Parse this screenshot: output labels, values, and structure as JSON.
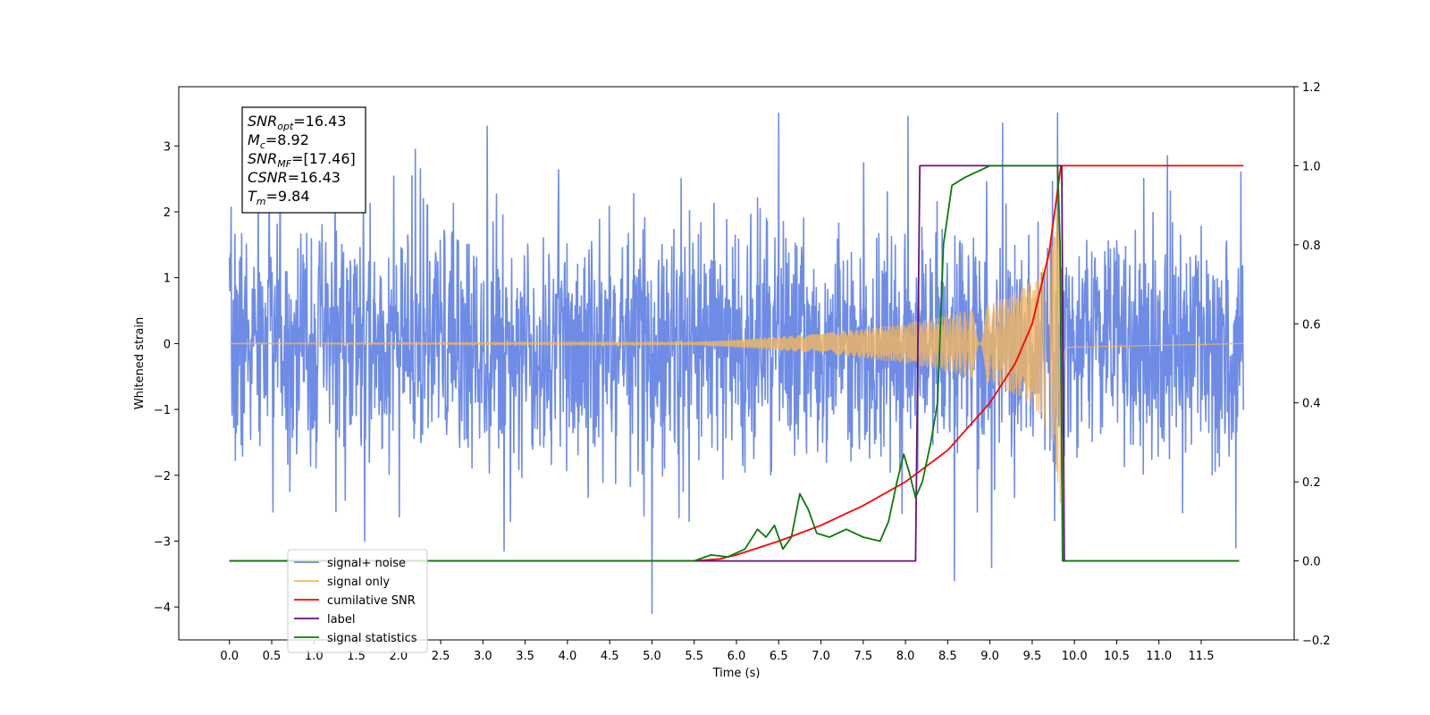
{
  "chart_data": {
    "type": "line",
    "title": "",
    "xlabel": "Time (s)",
    "ylabel": "Whitened strain",
    "y2label": "",
    "xlim": [
      -0.6,
      12.6
    ],
    "ylim": [
      -4.5,
      3.9
    ],
    "y2lim": [
      -0.2,
      1.2
    ],
    "xticks": [
      "0.0",
      "0.5",
      "1.0",
      "1.5",
      "2.0",
      "2.5",
      "3.0",
      "3.5",
      "4.0",
      "4.5",
      "5.0",
      "5.5",
      "6.0",
      "6.5",
      "7.0",
      "7.5",
      "8.0",
      "8.5",
      "9.0",
      "9.5",
      "10.0",
      "10.5",
      "11.0",
      "11.5"
    ],
    "yticks": [
      -4,
      -3,
      -2,
      -1,
      0,
      1,
      2,
      3
    ],
    "y2ticks": [
      "-0.2",
      "0.0",
      "0.2",
      "0.4",
      "0.6",
      "0.8",
      "1.0",
      "1.2"
    ],
    "annotation": {
      "lines": [
        {
          "sym": "SNR",
          "sub": "opt",
          "val": "=16.43"
        },
        {
          "sym": "M",
          "sub": "c",
          "val": "=8.92"
        },
        {
          "sym": "SNR",
          "sub": "MF",
          "val": "=[17.46]"
        },
        {
          "sym": "CSNR",
          "sub": "",
          "val": "=16.43"
        },
        {
          "sym": "T",
          "sub": "m",
          "val": "=9.84"
        }
      ]
    },
    "series": [
      {
        "name": "signal+ noise",
        "axis": "left",
        "color": "#6e8ce6",
        "style": "noise",
        "x_range": [
          0.0,
          12.0
        ],
        "sigma": 0.9,
        "seed": 7,
        "extreme_points": [
          [
            1.25,
            2.95
          ],
          [
            1.6,
            -3.0
          ],
          [
            2.2,
            2.95
          ],
          [
            3.05,
            3.3
          ],
          [
            3.25,
            -3.15
          ],
          [
            5.0,
            -4.1
          ],
          [
            6.5,
            3.5
          ],
          [
            8.03,
            3.45
          ],
          [
            8.58,
            -3.6
          ],
          [
            9.02,
            -3.4
          ],
          [
            9.15,
            3.35
          ],
          [
            9.8,
            3.5
          ],
          [
            11.1,
            2.85
          ],
          [
            11.91,
            -3.1
          ]
        ]
      },
      {
        "name": "signal only",
        "axis": "left",
        "color": "#f2b760",
        "style": "chirp",
        "t_merge": 9.84,
        "t_end": 9.9,
        "env_points": [
          [
            0.0,
            0.005
          ],
          [
            5.5,
            0.02
          ],
          [
            6.0,
            0.06
          ],
          [
            7.0,
            0.15
          ],
          [
            8.0,
            0.3
          ],
          [
            8.5,
            0.43
          ],
          [
            9.0,
            0.6
          ],
          [
            9.4,
            0.85
          ],
          [
            9.6,
            1.1
          ],
          [
            9.75,
            1.55
          ],
          [
            9.84,
            2.6
          ]
        ]
      },
      {
        "name": "cumilative SNR",
        "axis": "right",
        "color": "#ff0000",
        "points": [
          [
            0.0,
            0.0
          ],
          [
            5.5,
            0.0
          ],
          [
            5.8,
            0.005
          ],
          [
            6.0,
            0.015
          ],
          [
            6.5,
            0.05
          ],
          [
            7.0,
            0.09
          ],
          [
            7.5,
            0.14
          ],
          [
            8.0,
            0.2
          ],
          [
            8.5,
            0.28
          ],
          [
            9.0,
            0.4
          ],
          [
            9.3,
            0.5
          ],
          [
            9.5,
            0.6
          ],
          [
            9.7,
            0.78
          ],
          [
            9.84,
            1.0
          ],
          [
            12.0,
            1.0
          ]
        ]
      },
      {
        "name": "label",
        "axis": "right",
        "color": "#6a0f7a",
        "points": [
          [
            0.0,
            0.0
          ],
          [
            8.12,
            0.0
          ],
          [
            8.17,
            1.0
          ],
          [
            9.85,
            1.0
          ],
          [
            9.88,
            0.0
          ],
          [
            11.95,
            0.0
          ]
        ]
      },
      {
        "name": "signal statistics",
        "axis": "right",
        "color": "#0a7a0a",
        "points": [
          [
            0.0,
            0.0
          ],
          [
            5.5,
            0.0
          ],
          [
            5.7,
            0.015
          ],
          [
            5.9,
            0.01
          ],
          [
            6.1,
            0.03
          ],
          [
            6.25,
            0.08
          ],
          [
            6.35,
            0.06
          ],
          [
            6.45,
            0.09
          ],
          [
            6.55,
            0.03
          ],
          [
            6.65,
            0.06
          ],
          [
            6.75,
            0.17
          ],
          [
            6.85,
            0.13
          ],
          [
            6.95,
            0.07
          ],
          [
            7.1,
            0.06
          ],
          [
            7.3,
            0.08
          ],
          [
            7.5,
            0.06
          ],
          [
            7.7,
            0.05
          ],
          [
            7.8,
            0.1
          ],
          [
            7.9,
            0.2
          ],
          [
            7.98,
            0.27
          ],
          [
            8.05,
            0.22
          ],
          [
            8.12,
            0.16
          ],
          [
            8.2,
            0.2
          ],
          [
            8.3,
            0.3
          ],
          [
            8.38,
            0.4
          ],
          [
            8.45,
            0.8
          ],
          [
            8.55,
            0.95
          ],
          [
            8.7,
            0.97
          ],
          [
            9.0,
            1.0
          ],
          [
            9.8,
            1.0
          ],
          [
            9.83,
            0.8
          ],
          [
            9.86,
            0.0
          ],
          [
            11.95,
            0.0
          ]
        ]
      }
    ],
    "legend": {
      "position": "lower-left",
      "items": [
        {
          "label": "signal+ noise",
          "color": "#6e8ce6"
        },
        {
          "label": "signal only",
          "color": "#f2b760"
        },
        {
          "label": "cumilative SNR",
          "color": "#ff0000"
        },
        {
          "label": "label",
          "color": "#6a0f7a"
        },
        {
          "label": "signal statistics",
          "color": "#0a7a0a"
        }
      ]
    }
  }
}
